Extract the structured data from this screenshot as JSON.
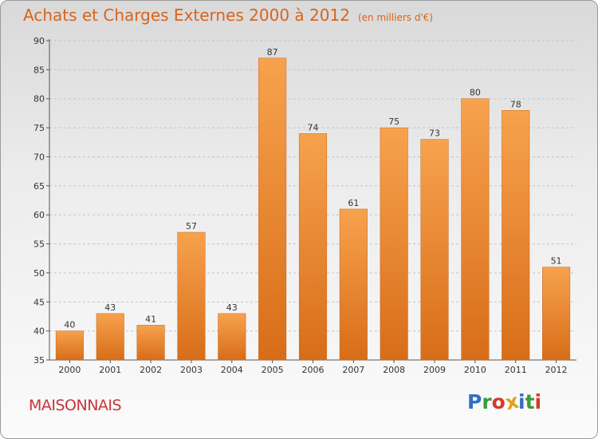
{
  "title": "Achats et Charges Externes 2000 à 2012",
  "subtitle": "(en milliers d'€)",
  "commune": "MAISONNAIS",
  "brand": {
    "letters": [
      "P",
      "r",
      "o",
      "x",
      "i",
      "t",
      "i"
    ],
    "colors": [
      "#2f6fc7",
      "#3a9a3c",
      "#d43a2a",
      "#e0a21e",
      "#2f6fc7",
      "#3a9a3c",
      "#d43a2a"
    ]
  },
  "colors": {
    "bar_top": "#f7a24e",
    "bar_bottom": "#d86d18",
    "bar_edge": "#c9661a",
    "title": "#d8641d",
    "commune": "#c8343c"
  },
  "chart_data": {
    "type": "bar",
    "categories": [
      "2000",
      "2001",
      "2002",
      "2003",
      "2004",
      "2005",
      "2006",
      "2007",
      "2008",
      "2009",
      "2010",
      "2011",
      "2012"
    ],
    "values": [
      40,
      43,
      41,
      57,
      43,
      87,
      74,
      61,
      75,
      73,
      80,
      78,
      51
    ],
    "title": "Achats et Charges Externes 2000 à 2012",
    "ylim": [
      35,
      90
    ],
    "yticks": [
      35,
      40,
      45,
      50,
      55,
      60,
      65,
      70,
      75,
      80,
      85,
      90
    ],
    "grid": true
  }
}
